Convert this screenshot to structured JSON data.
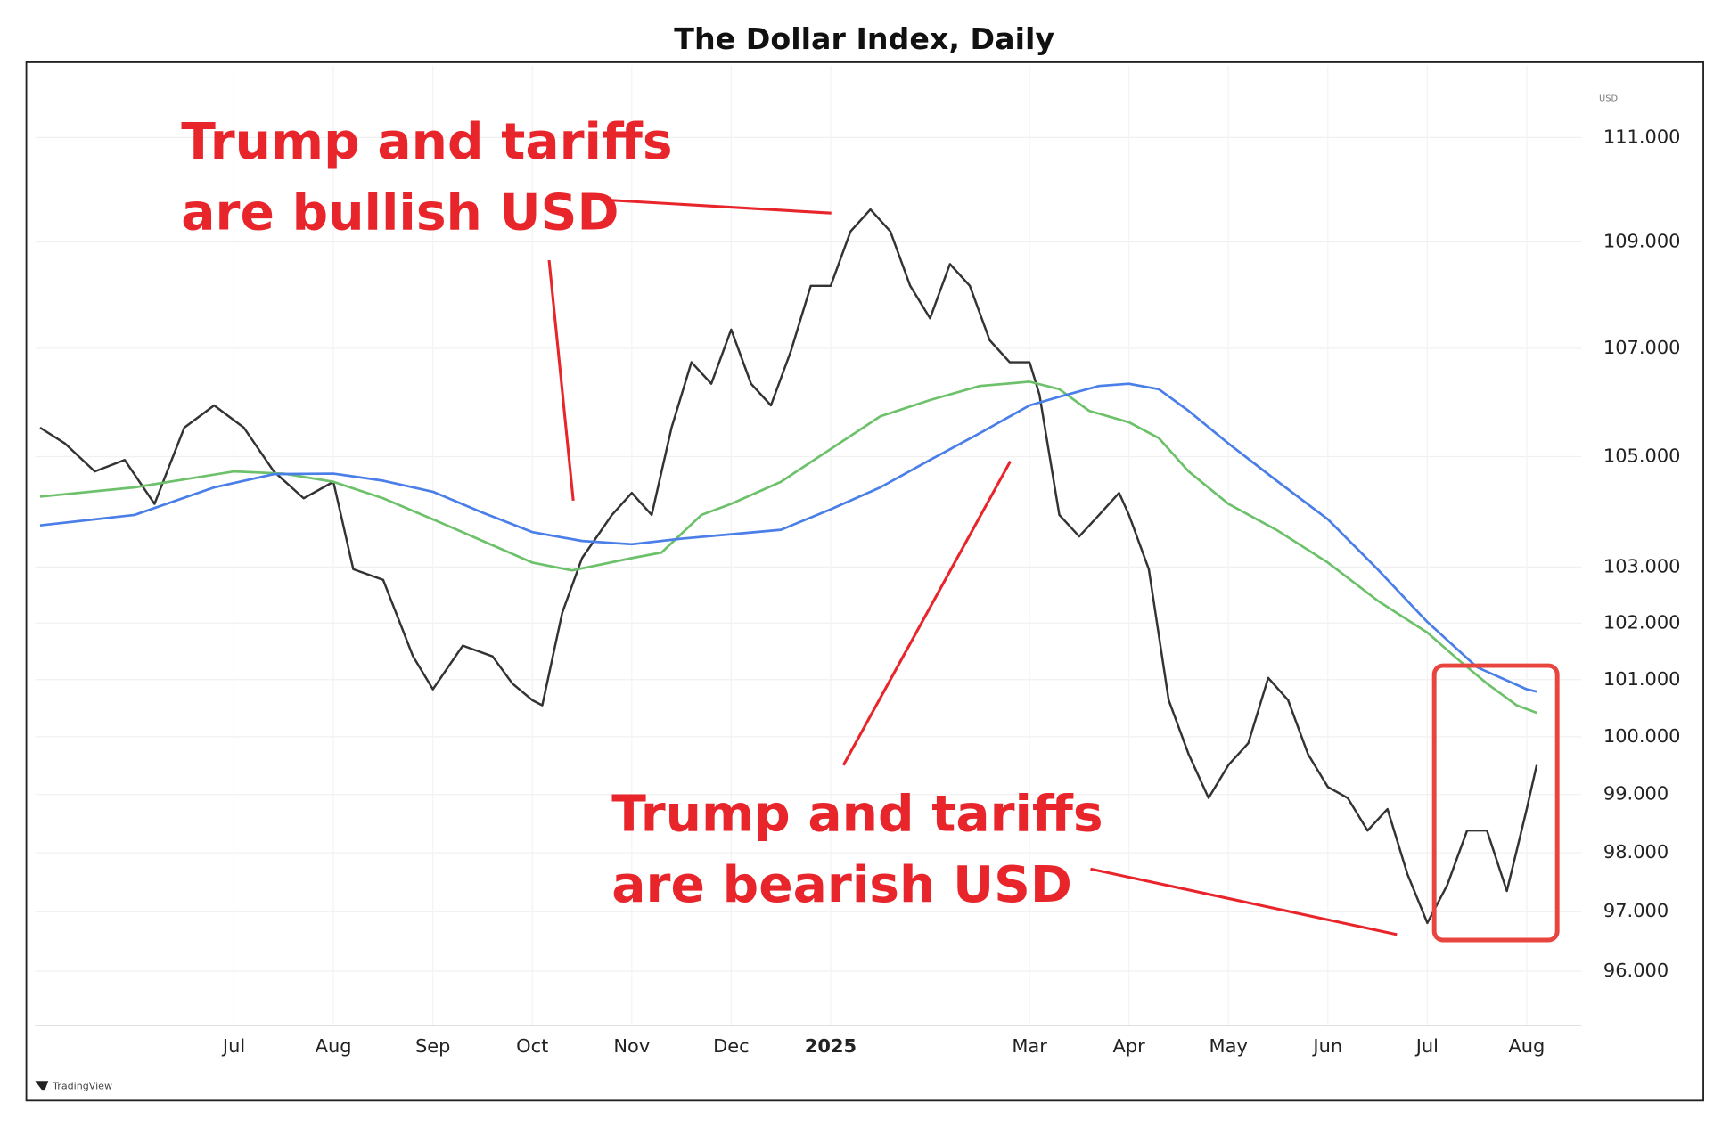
{
  "chart_data": {
    "type": "line",
    "title": "The Dollar Index, Daily",
    "axis_unit": "USD",
    "watermark": "TradingView",
    "log_scale": true,
    "grid": true,
    "xlim": [
      5.0,
      20.55
    ],
    "xticks": [
      {
        "value": 7,
        "label": "Jul"
      },
      {
        "value": 8,
        "label": "Aug"
      },
      {
        "value": 9,
        "label": "Sep"
      },
      {
        "value": 10,
        "label": "Oct"
      },
      {
        "value": 11,
        "label": "Nov"
      },
      {
        "value": 12,
        "label": "Dec"
      },
      {
        "value": 13,
        "label": "2025"
      },
      {
        "value": 15,
        "label": "Mar"
      },
      {
        "value": 16,
        "label": "Apr"
      },
      {
        "value": 17,
        "label": "May"
      },
      {
        "value": 18,
        "label": "Jun"
      },
      {
        "value": 19,
        "label": "Jul"
      },
      {
        "value": 20,
        "label": "Aug"
      }
    ],
    "ylim": [
      95.1,
      112.4
    ],
    "yticks": [
      {
        "value": 96,
        "label": "96.000"
      },
      {
        "value": 97,
        "label": "97.000"
      },
      {
        "value": 98,
        "label": "98.000"
      },
      {
        "value": 99,
        "label": "99.000"
      },
      {
        "value": 100,
        "label": "100.000"
      },
      {
        "value": 101,
        "label": "101.000"
      },
      {
        "value": 102,
        "label": "102.000"
      },
      {
        "value": 103,
        "label": "103.000"
      },
      {
        "value": 105,
        "label": "105.000"
      },
      {
        "value": 107,
        "label": "107.000"
      },
      {
        "value": 109,
        "label": "109.000"
      },
      {
        "value": 111,
        "label": "111.000"
      }
    ],
    "series": [
      {
        "color": "#333333",
        "x": [
          5.05,
          5.3,
          5.6,
          5.9,
          6.2,
          6.5,
          6.8,
          7.1,
          7.4,
          7.7,
          8.0,
          8.2,
          8.5,
          8.8,
          9.0,
          9.3,
          9.6,
          9.8,
          10.0,
          10.1,
          10.3,
          10.5,
          10.8,
          11.0,
          11.2,
          11.4,
          11.6,
          11.8,
          12.0,
          12.2,
          12.4,
          12.6,
          12.8,
          13.0,
          13.2,
          13.4,
          13.6,
          13.8,
          14.0,
          14.2,
          14.4,
          14.6,
          14.8,
          15.0,
          15.1,
          15.3,
          15.5,
          15.7,
          15.9,
          16.0,
          16.2,
          16.4,
          16.6,
          16.8,
          17.0,
          17.2,
          17.4,
          17.6,
          17.8,
          18.0,
          18.2,
          18.4,
          18.6,
          18.8,
          19.0,
          19.2,
          19.4,
          19.6,
          19.8,
          20.0,
          20.1
        ],
        "values": [
          105.53,
          105.24,
          104.73,
          104.94,
          104.14,
          105.53,
          105.94,
          105.53,
          104.73,
          104.24,
          104.54,
          102.96,
          102.77,
          101.41,
          100.83,
          101.6,
          101.41,
          100.93,
          100.64,
          100.55,
          102.18,
          103.16,
          103.94,
          104.34,
          103.94,
          105.53,
          106.74,
          106.34,
          107.35,
          106.34,
          105.94,
          106.95,
          108.17,
          108.17,
          109.2,
          109.62,
          109.2,
          108.17,
          107.56,
          108.58,
          108.17,
          107.15,
          106.74,
          106.74,
          106.14,
          103.94,
          103.55,
          103.94,
          104.34,
          103.94,
          102.96,
          100.64,
          99.7,
          98.94,
          99.51,
          99.89,
          101.03,
          100.64,
          99.7,
          99.13,
          98.94,
          98.38,
          98.75,
          97.64,
          96.81,
          97.45,
          98.38,
          98.38,
          97.35,
          98.75,
          99.51
        ]
      },
      {
        "color": "#6cc16a",
        "x": [
          5.05,
          6.0,
          7.0,
          7.5,
          8.0,
          8.5,
          9.0,
          9.5,
          10.0,
          10.4,
          11.0,
          11.3,
          11.7,
          12.0,
          12.5,
          13.0,
          13.5,
          14.0,
          14.5,
          15.0,
          15.3,
          15.6,
          16.0,
          16.3,
          16.6,
          17.0,
          17.5,
          18.0,
          18.5,
          19.0,
          19.3,
          19.6,
          19.9,
          20.1
        ],
        "values": [
          104.27,
          104.44,
          104.73,
          104.69,
          104.54,
          104.24,
          103.86,
          103.47,
          103.08,
          102.94,
          103.16,
          103.26,
          103.94,
          104.14,
          104.54,
          105.14,
          105.74,
          106.04,
          106.3,
          106.38,
          106.24,
          105.84,
          105.63,
          105.34,
          104.73,
          104.14,
          103.65,
          103.08,
          102.4,
          101.83,
          101.37,
          100.93,
          100.55,
          100.42
        ]
      },
      {
        "color": "#4a7ee8",
        "x": [
          5.05,
          6.0,
          6.8,
          7.4,
          8.0,
          8.5,
          9.0,
          9.5,
          10.0,
          10.5,
          11.0,
          11.5,
          12.0,
          12.5,
          13.0,
          13.5,
          14.0,
          14.5,
          15.0,
          15.3,
          15.7,
          16.0,
          16.3,
          16.6,
          17.0,
          17.5,
          18.0,
          18.5,
          19.0,
          19.5,
          20.0,
          20.1
        ],
        "values": [
          103.75,
          103.94,
          104.44,
          104.68,
          104.69,
          104.56,
          104.36,
          103.98,
          103.63,
          103.47,
          103.41,
          103.51,
          103.59,
          103.67,
          104.04,
          104.44,
          104.94,
          105.43,
          105.94,
          106.1,
          106.3,
          106.34,
          106.24,
          105.84,
          105.24,
          104.54,
          103.86,
          102.96,
          102.02,
          101.22,
          100.83,
          100.79
        ]
      }
    ],
    "annotations": [
      {
        "text": [
          "Trump and tariffs",
          "are bullish USD"
        ]
      },
      {
        "text": [
          "Trump and tariffs",
          "are bearish USD"
        ]
      }
    ]
  }
}
